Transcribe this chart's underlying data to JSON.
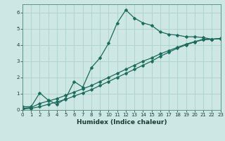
{
  "xlabel": "Humidex (Indice chaleur)",
  "xlim": [
    0,
    23
  ],
  "ylim": [
    0,
    6.5
  ],
  "xticks": [
    0,
    1,
    2,
    3,
    4,
    5,
    6,
    7,
    8,
    9,
    10,
    11,
    12,
    13,
    14,
    15,
    16,
    17,
    18,
    19,
    20,
    21,
    22,
    23
  ],
  "yticks": [
    0,
    1,
    2,
    3,
    4,
    5,
    6
  ],
  "bg_color": "#cde8e4",
  "grid_color": "#aed0cb",
  "line_color": "#1a6b5a",
  "line1_x": [
    0,
    1,
    2,
    3,
    4,
    5,
    6,
    7,
    8,
    9,
    10,
    11,
    12,
    13,
    14,
    15,
    16,
    17,
    18,
    19,
    20,
    21,
    22,
    23
  ],
  "line1_y": [
    0.2,
    0.2,
    1.05,
    0.6,
    0.35,
    0.7,
    1.75,
    1.4,
    2.6,
    3.2,
    4.1,
    5.35,
    6.15,
    5.65,
    5.35,
    5.2,
    4.8,
    4.65,
    4.6,
    4.5,
    4.5,
    4.45,
    4.35,
    4.4
  ],
  "line2_x": [
    0,
    1,
    2,
    3,
    4,
    5,
    6,
    7,
    8,
    9,
    10,
    11,
    12,
    13,
    14,
    15,
    16,
    17,
    18,
    19,
    20,
    21,
    22,
    23
  ],
  "line2_y": [
    0.1,
    0.15,
    0.4,
    0.55,
    0.7,
    0.9,
    1.1,
    1.3,
    1.5,
    1.75,
    2.0,
    2.25,
    2.5,
    2.75,
    3.0,
    3.2,
    3.45,
    3.65,
    3.85,
    4.05,
    4.2,
    4.35,
    4.35,
    4.38
  ],
  "line3_x": [
    0,
    1,
    2,
    3,
    4,
    5,
    6,
    7,
    8,
    9,
    10,
    11,
    12,
    13,
    14,
    15,
    16,
    17,
    18,
    19,
    20,
    21,
    22,
    23
  ],
  "line3_y": [
    0.05,
    0.1,
    0.2,
    0.35,
    0.5,
    0.65,
    0.85,
    1.05,
    1.25,
    1.5,
    1.75,
    2.0,
    2.25,
    2.5,
    2.75,
    3.0,
    3.3,
    3.55,
    3.8,
    4.0,
    4.18,
    4.32,
    4.35,
    4.38
  ]
}
